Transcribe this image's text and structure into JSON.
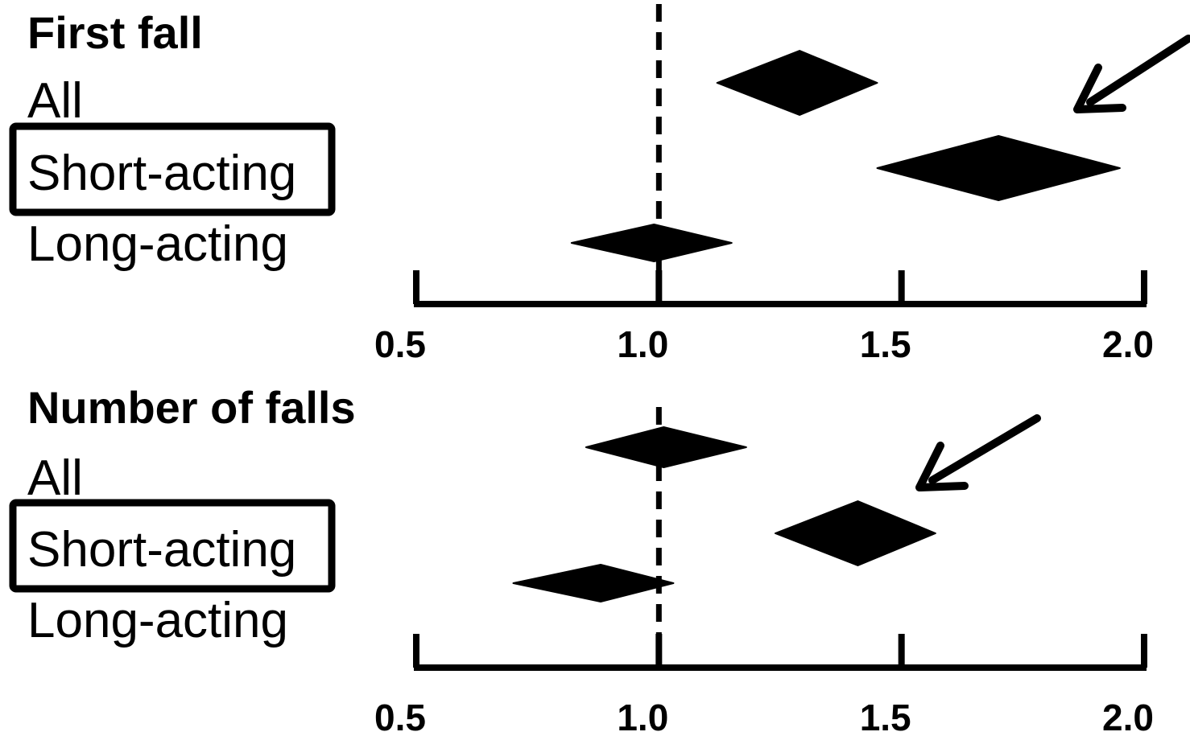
{
  "chart_data": [
    {
      "type": "forest",
      "title": "First fall",
      "categories": [
        "All",
        "Short-acting",
        "Long-acting"
      ],
      "highlighted": [
        "Short-acting"
      ],
      "values": [
        1.29,
        1.7,
        0.99
      ],
      "ci_low": [
        1.12,
        1.45,
        0.82
      ],
      "ci_high": [
        1.45,
        1.95,
        1.15
      ],
      "reference_line": 1.0,
      "xlim": [
        0.5,
        2.0
      ],
      "xticks": [
        "0.5",
        "1.0",
        "1.5",
        "2.0"
      ],
      "annotation": "arrow pointing to Short-acting"
    },
    {
      "type": "forest",
      "title": "Number of falls",
      "categories": [
        "All",
        "Short-acting",
        "Long-acting"
      ],
      "highlighted": [
        "Short-acting"
      ],
      "values": [
        1.01,
        1.41,
        0.88
      ],
      "ci_low": [
        0.85,
        1.24,
        0.7
      ],
      "ci_high": [
        1.18,
        1.57,
        1.03
      ],
      "reference_line": 1.0,
      "xlim": [
        0.5,
        2.0
      ],
      "xticks": [
        "0.5",
        "1.0",
        "1.5",
        "2.0"
      ],
      "annotation": "arrow pointing to Short-acting"
    }
  ],
  "colors": {
    "ink": "#000000",
    "background": "#ffffff"
  }
}
